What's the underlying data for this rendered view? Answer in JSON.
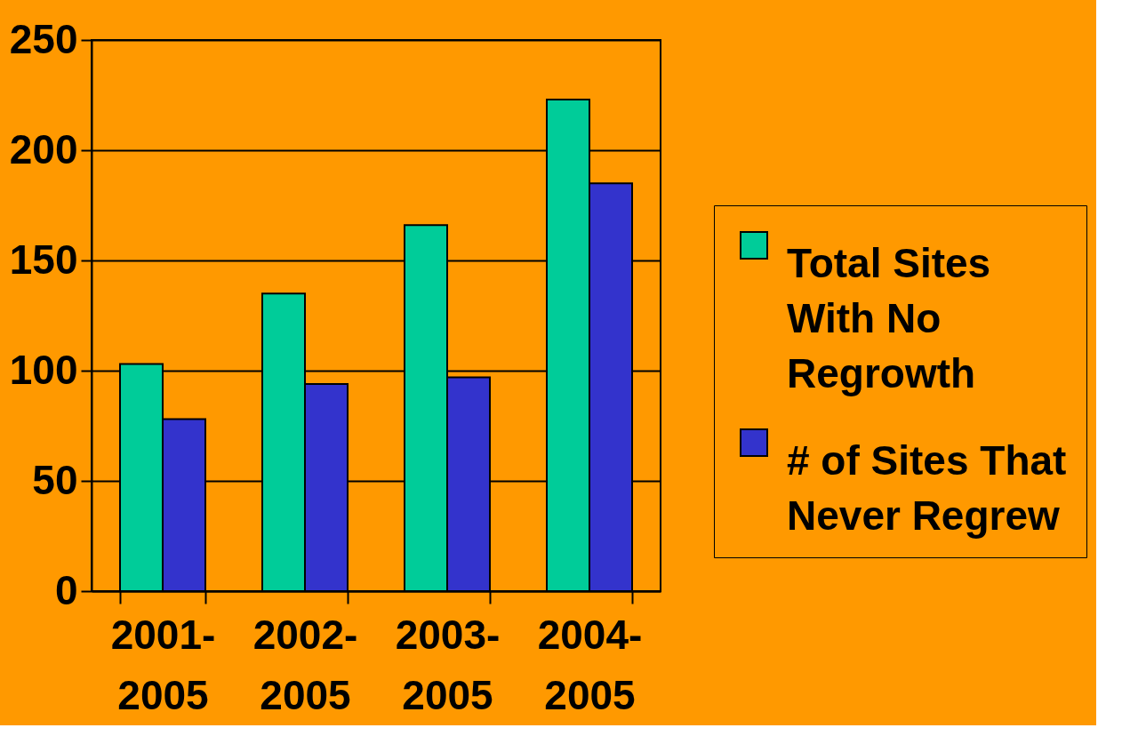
{
  "chart_data": {
    "type": "bar",
    "categories": [
      "2001-2005",
      "2002-2005",
      "2003-2005",
      "2004-2005"
    ],
    "series": [
      {
        "name": "Total Sites With No Regrowth",
        "color": "#00cc99",
        "values": [
          103,
          135,
          166,
          223
        ]
      },
      {
        "name": "# of Sites That Never Regrew",
        "color": "#3333cc",
        "values": [
          78,
          94,
          97,
          185
        ]
      }
    ],
    "ylim": [
      0,
      250
    ],
    "yticks": [
      0,
      50,
      100,
      150,
      200,
      250
    ],
    "grid": "y",
    "legend": "right"
  }
}
